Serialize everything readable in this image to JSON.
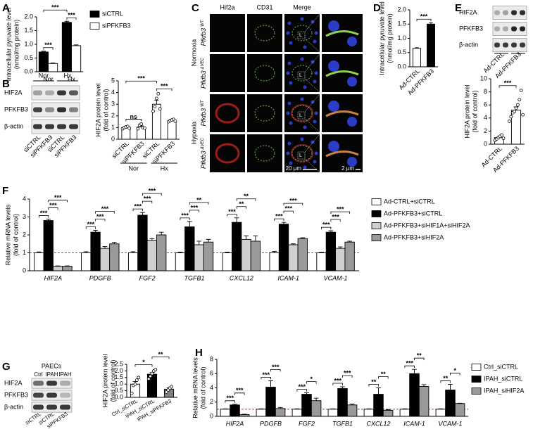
{
  "panel_labels": [
    "A",
    "B",
    "C",
    "D",
    "E",
    "F",
    "G",
    "H"
  ],
  "blot_b": {
    "groups": [
      "Nor",
      "Hx"
    ],
    "proteins": [
      "HIF2A",
      "PFKFB3",
      "β-actin"
    ],
    "lanes": [
      "siCTRL",
      "siPFKFB3",
      "siCTRL",
      "siPFKFB3"
    ]
  },
  "micrographs_c": {
    "columns": [
      "Hif2a",
      "CD31",
      "Merge"
    ],
    "conditions": [
      "Normoxia",
      "Hypoxia"
    ],
    "genotypes": [
      {
        "gene": "Pfkfb3",
        "allele": "WT"
      },
      {
        "gene": "Pfkfb3",
        "allele": "ΔVEC"
      },
      {
        "gene": "Pfkfb3",
        "allele": "WT"
      },
      {
        "gene": "Pfkfb3",
        "allele": "ΔVEC"
      }
    ],
    "lumen_mark": "L",
    "scale_bars": [
      "20 μm",
      "2 μm"
    ]
  },
  "blot_e": {
    "proteins": [
      "HIF2A",
      "PFKFB3",
      "β-actin"
    ],
    "lanes": [
      "Ad-CTRL",
      "Ad-PFKFB3"
    ]
  },
  "blot_g": {
    "title": "PAECs",
    "groups": [
      "Ctrl",
      "IPAH",
      "IPAH"
    ],
    "proteins": [
      "HIF2A",
      "PFKFB3",
      "β-actin"
    ],
    "lanes": [
      "siCTRL",
      "siCTRL",
      "siPFKFB3"
    ]
  },
  "chart_data": [
    {
      "type": "bar",
      "y_label": [
        "Intracellular pyruvate level",
        "(nmol/mg protein)"
      ],
      "categories": [
        "Nor",
        "Hx"
      ],
      "series": [
        {
          "name": "siCTRL",
          "color": "#000000",
          "values": [
            0.72,
            1.8
          ],
          "errors": [
            0.03,
            0.04
          ]
        },
        {
          "name": "siPFKFB3",
          "color": "#ffffff",
          "values": [
            0.3,
            0.95
          ],
          "errors": [
            0.02,
            0.03
          ]
        }
      ],
      "ylim": [
        0,
        2
      ],
      "yticks": [
        {
          "value": 0,
          "label": "0.0"
        },
        0.5,
        {
          "value": 1,
          "label": "1.0"
        },
        1.5,
        {
          "value": 2,
          "label": "2.0"
        }
      ],
      "annotations": [
        {
          "text": "***",
          "between": [
            [
              0,
              0
            ],
            [
              1,
              0
            ]
          ]
        },
        {
          "text": "***",
          "between": [
            [
              0,
              1
            ],
            [
              1,
              1
            ]
          ]
        },
        {
          "text": "***",
          "between": [
            [
              0,
              0
            ],
            [
              0,
              1
            ]
          ]
        }
      ]
    },
    {
      "type": "bar",
      "y_label": [
        "HIF2A protein level",
        "(fold of control)"
      ],
      "categories": [
        "siCTRL",
        "siPFKFB3",
        "siCTRL",
        "siPFKFB3"
      ],
      "groups": [
        {
          "label": "Nor",
          "span": [
            0,
            1
          ]
        },
        {
          "label": "Hx",
          "span": [
            2,
            3
          ]
        }
      ],
      "values": [
        1,
        1.05,
        3,
        1.6
      ],
      "errors": [
        0.05,
        0.1,
        0.35,
        0.05
      ],
      "colors": [
        "#ffffff",
        "#ffffff",
        "#ffffff",
        "#ffffff"
      ],
      "points": [
        [
          0.9,
          1,
          1.05,
          1.1,
          0.95
        ],
        [
          0.9,
          1.2,
          1.3,
          1,
          0.95
        ],
        [
          2.4,
          2.8,
          3.5,
          3.9,
          2.6
        ],
        [
          1.5,
          1.6,
          1.65,
          1.7,
          1.55
        ]
      ],
      "ylim": [
        0,
        5
      ],
      "yticks": [
        0,
        1,
        2,
        3,
        4,
        5
      ],
      "annotations": [
        {
          "text": "ns",
          "between": [
            0,
            1
          ]
        },
        {
          "text": "***",
          "between": [
            2,
            3
          ]
        },
        {
          "text": "***",
          "between": [
            0,
            2
          ]
        }
      ]
    },
    {
      "type": "bar",
      "y_label": [
        "Intracellular pyruvate level",
        "(nmol/mg protein)"
      ],
      "categories": [
        "Ad-CTRL",
        "Ad-PFKFB3"
      ],
      "values": [
        0.65,
        1.5
      ],
      "errors": [
        0.02,
        0.05
      ],
      "colors": [
        "#ffffff",
        "#000000"
      ],
      "ylim": [
        0,
        2
      ],
      "yticks": [
        {
          "value": 0,
          "label": "0.0"
        },
        0.5,
        {
          "value": 1,
          "label": "1.0"
        },
        1.5,
        {
          "value": 2,
          "label": "2.0"
        }
      ],
      "annotations": [
        {
          "text": "***",
          "between": [
            0,
            1
          ]
        }
      ]
    },
    {
      "type": "bar",
      "y_label": [
        "HIF2A protein level",
        "(fold of control)"
      ],
      "categories": [
        "Ad-CTRL",
        "Ad-PFKFB3"
      ],
      "values": [
        1,
        5.2
      ],
      "errors": [
        0.15,
        0.5
      ],
      "colors": [
        "#ffffff",
        "#ffffff"
      ],
      "points": [
        [
          0.6,
          0.8,
          1,
          1.2,
          1.4,
          0.9
        ],
        [
          3.5,
          4.2,
          4.8,
          5,
          5.5,
          6,
          6.8,
          8.2,
          4.5
        ]
      ],
      "ylim": [
        0,
        10
      ],
      "yticks": [
        0,
        2,
        4,
        6,
        8,
        10
      ],
      "annotations": [
        {
          "text": "***",
          "between": [
            0,
            1
          ]
        }
      ]
    },
    {
      "type": "bar",
      "y_label": [
        "Relative mRNA levels",
        "(fold of control)"
      ],
      "categories": [
        "HIF2A",
        "PDGFB",
        "FGF2",
        "TGFB1",
        "CXCL12",
        "ICAM-1",
        "VCAM-1"
      ],
      "series": [
        {
          "name": "Ad-CTRL+siCTRL",
          "color": "#ffffff",
          "values": [
            1,
            1,
            1,
            1,
            1,
            1,
            1
          ],
          "errors": [
            0.05,
            0.06,
            0.06,
            0.04,
            0.04,
            0.08,
            0.03
          ]
        },
        {
          "name": "Ad-PFKFB3+siCTRL",
          "color": "#000000",
          "values": [
            2.8,
            2.15,
            3.1,
            2.45,
            2.7,
            2.6,
            2.15
          ],
          "errors": [
            0.08,
            0.1,
            0.15,
            0.3,
            0.25,
            0.1,
            0.08
          ]
        },
        {
          "name": "Ad-PFKFB3+siHIF1A+siHIF2A",
          "color": "#d0d0d0",
          "values": [
            0.25,
            1.25,
            1.7,
            1.45,
            1.75,
            1.45,
            1.25
          ],
          "errors": [
            0.02,
            0.1,
            0.08,
            0.2,
            0.2,
            0.05,
            0.08
          ]
        },
        {
          "name": "Ad-PFKFB3+siHIF2A",
          "color": "#9a9a9a",
          "values": [
            0.25,
            1.5,
            2,
            1.6,
            1.65,
            1.8,
            1.6
          ],
          "errors": [
            0.02,
            0.08,
            0.15,
            0.15,
            0.3,
            0.04,
            0.05
          ]
        }
      ],
      "reference_line": {
        "value": 1,
        "color": "#c0392b"
      },
      "ylim": [
        0,
        4
      ],
      "yticks": [
        0,
        1,
        2,
        3,
        4
      ],
      "annotations": [
        {
          "text": "***",
          "between": [
            [
              0,
              0
            ],
            [
              1,
              0
            ]
          ]
        },
        {
          "text": "***",
          "between": [
            [
              1,
              0
            ],
            [
              2,
              0
            ]
          ]
        },
        {
          "text": "***",
          "between": [
            [
              1,
              0
            ],
            [
              3,
              0
            ]
          ]
        },
        {
          "text": "***",
          "between": [
            [
              0,
              1
            ],
            [
              1,
              1
            ]
          ]
        },
        {
          "text": "***",
          "between": [
            [
              1,
              1
            ],
            [
              2,
              1
            ]
          ]
        },
        {
          "text": "***",
          "between": [
            [
              1,
              1
            ],
            [
              3,
              1
            ]
          ]
        },
        {
          "text": "***",
          "between": [
            [
              0,
              2
            ],
            [
              1,
              2
            ]
          ]
        },
        {
          "text": "***",
          "between": [
            [
              1,
              2
            ],
            [
              2,
              2
            ]
          ]
        },
        {
          "text": "***",
          "between": [
            [
              1,
              2
            ],
            [
              3,
              2
            ]
          ]
        },
        {
          "text": "***",
          "between": [
            [
              0,
              3
            ],
            [
              1,
              3
            ]
          ]
        },
        {
          "text": "***",
          "between": [
            [
              1,
              3
            ],
            [
              2,
              3
            ]
          ]
        },
        {
          "text": "**",
          "between": [
            [
              1,
              3
            ],
            [
              3,
              3
            ]
          ]
        },
        {
          "text": "***",
          "between": [
            [
              0,
              4
            ],
            [
              1,
              4
            ]
          ]
        },
        {
          "text": "**",
          "between": [
            [
              1,
              4
            ],
            [
              2,
              4
            ]
          ]
        },
        {
          "text": "**",
          "between": [
            [
              1,
              4
            ],
            [
              3,
              4
            ]
          ]
        },
        {
          "text": "***",
          "between": [
            [
              0,
              5
            ],
            [
              1,
              5
            ]
          ]
        },
        {
          "text": "***",
          "between": [
            [
              1,
              5
            ],
            [
              2,
              5
            ]
          ]
        },
        {
          "text": "***",
          "between": [
            [
              1,
              5
            ],
            [
              3,
              5
            ]
          ]
        },
        {
          "text": "***",
          "between": [
            [
              0,
              6
            ],
            [
              1,
              6
            ]
          ]
        },
        {
          "text": "***",
          "between": [
            [
              1,
              6
            ],
            [
              2,
              6
            ]
          ]
        },
        {
          "text": "***",
          "between": [
            [
              1,
              6
            ],
            [
              3,
              6
            ]
          ]
        }
      ]
    },
    {
      "type": "bar",
      "y_label": [
        "HIF2A protein level",
        "(fold of control)"
      ],
      "categories": [
        "Ctrl_siCTRL",
        "IPAH_siCTRL",
        "IPAH_siPFKFB3"
      ],
      "values": [
        1,
        1.75,
        0.62
      ],
      "errors": [
        0.2,
        0.12,
        0.1
      ],
      "colors": [
        "#ffffff",
        "#000000",
        "#808080"
      ],
      "points": [
        [
          0.3,
          0.9,
          1,
          1.3,
          1.5
        ],
        [
          1.4,
          1.6,
          1.8,
          2,
          2.1
        ],
        [
          0.4,
          0.55,
          0.7,
          0.8
        ]
      ],
      "ylim": [
        0,
        2.5
      ],
      "yticks": [
        {
          "value": 0,
          "label": "0.0"
        },
        0.5,
        {
          "value": 1,
          "label": "1.0"
        },
        1.5,
        {
          "value": 2,
          "label": "2.0"
        },
        2.5
      ],
      "annotations": [
        {
          "text": "*",
          "between": [
            0,
            1
          ]
        },
        {
          "text": "**",
          "between": [
            1,
            2
          ]
        }
      ]
    },
    {
      "type": "bar",
      "y_label": [
        "Relative mRNA levels",
        "(fold of control)"
      ],
      "categories": [
        "HIF2A",
        "PDGFB",
        "FGF2",
        "TGFB1",
        "CXCL12",
        "ICAM-1",
        "VCAM-1"
      ],
      "series": [
        {
          "name": "Ctrl_siCTRL",
          "color": "#ffffff",
          "values": [
            1,
            1,
            1,
            1,
            1,
            1,
            1
          ],
          "errors": [
            0.05,
            0.05,
            0.05,
            0.05,
            0.05,
            0.05,
            0.05
          ]
        },
        {
          "name": "IPAH_siCTRL",
          "color": "#000000",
          "values": [
            1.6,
            4.1,
            3.1,
            3.9,
            3.1,
            6,
            3.7
          ],
          "errors": [
            0.1,
            0.9,
            0.2,
            0.25,
            0.9,
            0.6,
            0.8
          ]
        },
        {
          "name": "IPAH_siHIF2A",
          "color": "#9a9a9a",
          "values": [
            0.25,
            1.1,
            2.2,
            1.6,
            0.85,
            4.2,
            1.8
          ],
          "errors": [
            0.05,
            0.15,
            0.35,
            0.12,
            0.1,
            0.25,
            0.05
          ]
        }
      ],
      "reference_line": {
        "value": 1,
        "color": "#c0392b"
      },
      "ylim": [
        0,
        8
      ],
      "yticks": [
        0,
        2,
        4,
        6,
        8
      ],
      "annotations": [
        {
          "text": "***",
          "between": [
            [
              0,
              0
            ],
            [
              1,
              0
            ]
          ]
        },
        {
          "text": "***",
          "between": [
            [
              1,
              0
            ],
            [
              2,
              0
            ]
          ]
        },
        {
          "text": "***",
          "between": [
            [
              0,
              1
            ],
            [
              1,
              1
            ]
          ]
        },
        {
          "text": "***",
          "between": [
            [
              1,
              1
            ],
            [
              2,
              1
            ]
          ]
        },
        {
          "text": "***",
          "between": [
            [
              0,
              2
            ],
            [
              1,
              2
            ]
          ]
        },
        {
          "text": "*",
          "between": [
            [
              1,
              2
            ],
            [
              2,
              2
            ]
          ]
        },
        {
          "text": "***",
          "between": [
            [
              0,
              3
            ],
            [
              1,
              3
            ]
          ]
        },
        {
          "text": "***",
          "between": [
            [
              1,
              3
            ],
            [
              2,
              3
            ]
          ]
        },
        {
          "text": "**",
          "between": [
            [
              0,
              4
            ],
            [
              1,
              4
            ]
          ]
        },
        {
          "text": "**",
          "between": [
            [
              1,
              4
            ],
            [
              2,
              4
            ]
          ]
        },
        {
          "text": "***",
          "between": [
            [
              0,
              5
            ],
            [
              1,
              5
            ]
          ]
        },
        {
          "text": "**",
          "between": [
            [
              1,
              5
            ],
            [
              2,
              5
            ]
          ]
        },
        {
          "text": "**",
          "between": [
            [
              0,
              6
            ],
            [
              1,
              6
            ]
          ]
        },
        {
          "text": "*",
          "between": [
            [
              1,
              6
            ],
            [
              2,
              6
            ]
          ]
        }
      ]
    }
  ]
}
